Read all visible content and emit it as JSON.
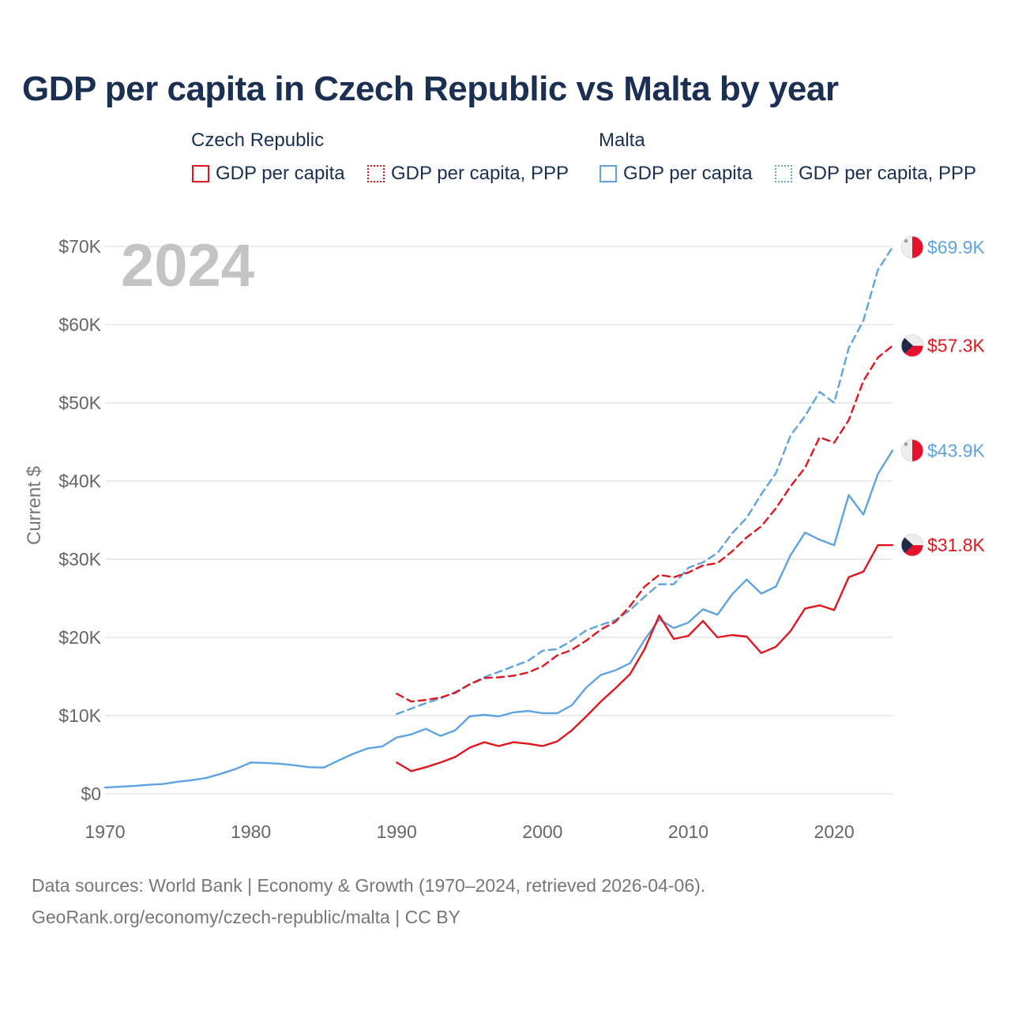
{
  "chart_data": {
    "type": "line",
    "title": "GDP per capita in Czech Republic vs Malta by year",
    "year_watermark": "2024",
    "ylabel": "Current $",
    "xlabel": "",
    "xlim": [
      1970,
      2024
    ],
    "ylim": [
      0,
      70000
    ],
    "x_ticks": [
      1970,
      1980,
      1990,
      2000,
      2010,
      2020
    ],
    "y_ticks": [
      {
        "value": 0,
        "label": "$0"
      },
      {
        "value": 10000,
        "label": "$10K"
      },
      {
        "value": 20000,
        "label": "$20K"
      },
      {
        "value": 30000,
        "label": "$30K"
      },
      {
        "value": 40000,
        "label": "$40K"
      },
      {
        "value": 50000,
        "label": "$50K"
      },
      {
        "value": 60000,
        "label": "$60K"
      },
      {
        "value": 70000,
        "label": "$70K"
      }
    ],
    "grid": true,
    "legend": {
      "groups": [
        {
          "title": "Czech Republic",
          "items": [
            "GDP per capita",
            "GDP per capita, PPP"
          ]
        },
        {
          "title": "Malta",
          "items": [
            "GDP per capita",
            "GDP per capita, PPP"
          ]
        }
      ]
    },
    "series": [
      {
        "name": "Malta GDP per capita, PPP",
        "country": "Malta",
        "color": "#5ea3e0",
        "style": "dashed",
        "end_label": "$69.9K",
        "flag": "malta",
        "start_year": 1990,
        "values": [
          10200,
          10900,
          11600,
          12200,
          13000,
          14000,
          14900,
          15600,
          16300,
          17000,
          18300,
          18500,
          19600,
          20900,
          21600,
          22200,
          23500,
          25200,
          26800,
          26800,
          28900,
          29600,
          30800,
          33300,
          35300,
          38300,
          41000,
          45800,
          48300,
          51400,
          50000,
          57000,
          60500,
          67000,
          69900
        ]
      },
      {
        "name": "Czech Republic GDP per capita, PPP",
        "country": "Czech Republic",
        "color": "#e0161e",
        "style": "dashed",
        "end_label": "$57.3K",
        "flag": "czech",
        "start_year": 1990,
        "values": [
          12800,
          11800,
          12000,
          12300,
          12900,
          14000,
          14800,
          14900,
          15100,
          15500,
          16300,
          17700,
          18400,
          19600,
          21000,
          22000,
          24000,
          26500,
          28000,
          27700,
          28300,
          29200,
          29500,
          31000,
          32800,
          34200,
          36500,
          39300,
          41700,
          45600,
          44900,
          47800,
          52800,
          55800,
          57300
        ]
      },
      {
        "name": "Malta GDP per capita",
        "country": "Malta",
        "color": "#5ea3e0",
        "style": "solid",
        "end_label": "$43.9K",
        "flag": "malta",
        "start_year": 1970,
        "values": [
          800,
          900,
          1000,
          1150,
          1250,
          1550,
          1750,
          2050,
          2600,
          3200,
          4000,
          3950,
          3850,
          3650,
          3400,
          3350,
          4250,
          5100,
          5800,
          6050,
          7200,
          7600,
          8300,
          7400,
          8100,
          9900,
          10100,
          9900,
          10400,
          10600,
          10300,
          10300,
          11300,
          13600,
          15200,
          15800,
          16700,
          19700,
          22300,
          21200,
          21900,
          23600,
          22900,
          25500,
          27400,
          25600,
          26500,
          30500,
          33400,
          32500,
          31800,
          38200,
          35700,
          40900,
          43900
        ]
      },
      {
        "name": "Czech Republic GDP per capita",
        "country": "Czech Republic",
        "color": "#e0161e",
        "style": "solid",
        "end_label": "$31.8K",
        "flag": "czech",
        "start_year": 1990,
        "values": [
          4000,
          2900,
          3400,
          4000,
          4700,
          5900,
          6600,
          6100,
          6600,
          6400,
          6100,
          6700,
          8100,
          9900,
          11800,
          13500,
          15300,
          18500,
          22800,
          19800,
          20200,
          22100,
          20000,
          20300,
          20100,
          18000,
          18800,
          20800,
          23700,
          24100,
          23500,
          27700,
          28400,
          31800,
          31800
        ]
      }
    ]
  },
  "footer": {
    "line1": "Data sources: World Bank | Economy & Growth (1970–2024, retrieved 2026-04-06).",
    "line2": "GeoRank.org/economy/czech-republic/malta | CC BY"
  }
}
